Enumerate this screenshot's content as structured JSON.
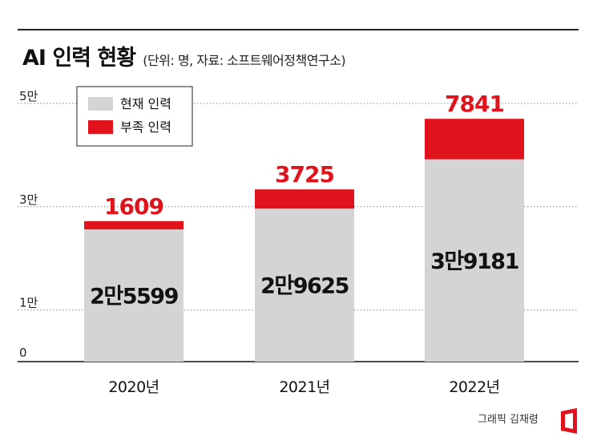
{
  "header": {
    "title": "AI 인력 현황",
    "subtitle": "(단위: 명, 자료: 소프트웨어정책연구소)"
  },
  "colors": {
    "current": "#d4d4d4",
    "shortage": "#e0121b",
    "text": "#111111",
    "grid": "#888888",
    "logo": "#e0121b"
  },
  "chart_data": {
    "type": "bar",
    "stacked": true,
    "categories": [
      "2020년",
      "2021년",
      "2022년"
    ],
    "series": [
      {
        "name": "현재 인력",
        "values": [
          25599,
          29625,
          39181
        ],
        "labels": [
          "2만5599",
          "2만9625",
          "3만9181"
        ]
      },
      {
        "name": "부족 인력",
        "values": [
          1609,
          3725,
          7841
        ],
        "labels": [
          "1609",
          "3725",
          "7841"
        ]
      }
    ],
    "yticks": [
      {
        "value": 0,
        "label": "0"
      },
      {
        "value": 10000,
        "label": "1만"
      },
      {
        "value": 30000,
        "label": "3만"
      },
      {
        "value": 50000,
        "label": "5만"
      }
    ],
    "ylim": [
      0,
      50000
    ],
    "grid": "dotted horizontal",
    "legend": "top-left"
  },
  "footer": {
    "credit": "그래픽 김채령",
    "logo_icon": "asiae-logo-icon"
  }
}
